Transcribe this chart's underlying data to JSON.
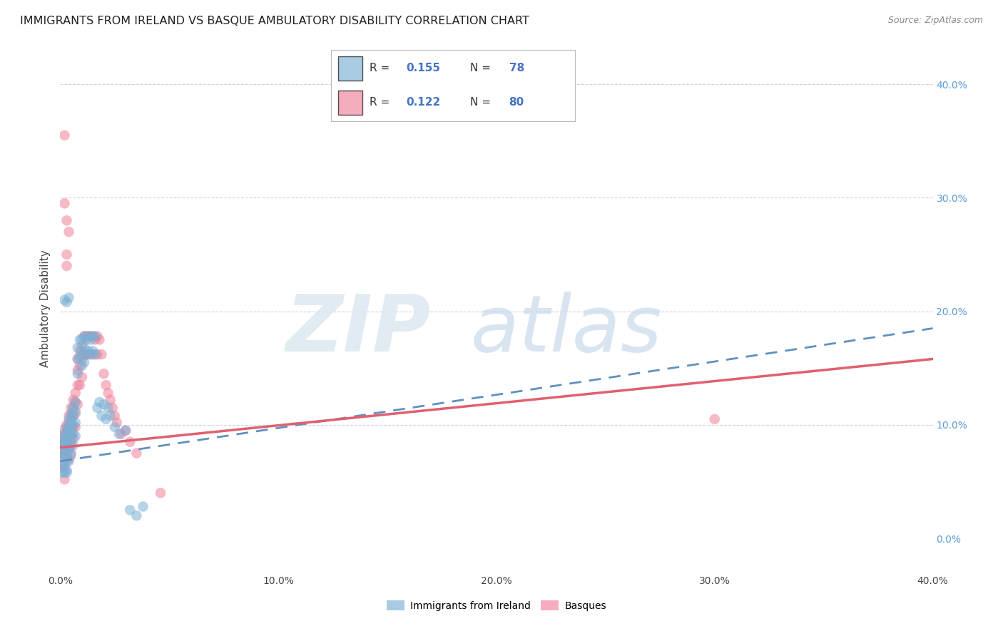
{
  "title": "IMMIGRANTS FROM IRELAND VS BASQUE AMBULATORY DISABILITY CORRELATION CHART",
  "source": "Source: ZipAtlas.com",
  "ylabel": "Ambulatory Disability",
  "x_min": 0.0,
  "x_max": 0.4,
  "y_min": -0.03,
  "y_max": 0.435,
  "ireland_color": "#7bafd4",
  "basque_color": "#f08098",
  "ireland_line_color": "#6090c0",
  "basque_line_color": "#e06070",
  "ireland_label": "Immigrants from Ireland",
  "basque_label": "Basques",
  "R_ireland": 0.155,
  "N_ireland": 78,
  "R_basque": 0.122,
  "N_basque": 80,
  "background_color": "#ffffff",
  "grid_color": "#c8d4e4",
  "ireland_line_start_y": 0.068,
  "ireland_line_end_y": 0.185,
  "basque_line_start_y": 0.08,
  "basque_line_end_y": 0.158,
  "ireland_scatter_x": [
    0.001,
    0.001,
    0.001,
    0.001,
    0.001,
    0.002,
    0.002,
    0.002,
    0.002,
    0.002,
    0.002,
    0.002,
    0.003,
    0.003,
    0.003,
    0.003,
    0.003,
    0.003,
    0.003,
    0.004,
    0.004,
    0.004,
    0.004,
    0.004,
    0.004,
    0.005,
    0.005,
    0.005,
    0.005,
    0.005,
    0.005,
    0.006,
    0.006,
    0.006,
    0.006,
    0.006,
    0.007,
    0.007,
    0.007,
    0.007,
    0.008,
    0.008,
    0.008,
    0.009,
    0.009,
    0.01,
    0.01,
    0.01,
    0.011,
    0.011,
    0.011,
    0.012,
    0.012,
    0.013,
    0.013,
    0.014,
    0.014,
    0.015,
    0.015,
    0.016,
    0.016,
    0.017,
    0.018,
    0.019,
    0.02,
    0.021,
    0.022,
    0.023,
    0.025,
    0.027,
    0.03,
    0.032,
    0.035,
    0.038,
    0.002,
    0.003,
    0.004,
    0.003
  ],
  "ireland_scatter_y": [
    0.085,
    0.078,
    0.072,
    0.065,
    0.058,
    0.092,
    0.088,
    0.083,
    0.078,
    0.073,
    0.065,
    0.058,
    0.098,
    0.093,
    0.088,
    0.083,
    0.075,
    0.068,
    0.06,
    0.105,
    0.098,
    0.092,
    0.085,
    0.078,
    0.068,
    0.11,
    0.104,
    0.098,
    0.09,
    0.082,
    0.073,
    0.115,
    0.108,
    0.1,
    0.092,
    0.082,
    0.12,
    0.112,
    0.102,
    0.09,
    0.168,
    0.158,
    0.145,
    0.175,
    0.16,
    0.175,
    0.165,
    0.152,
    0.178,
    0.168,
    0.155,
    0.175,
    0.162,
    0.178,
    0.165,
    0.175,
    0.162,
    0.178,
    0.165,
    0.178,
    0.162,
    0.115,
    0.12,
    0.108,
    0.118,
    0.105,
    0.115,
    0.108,
    0.098,
    0.092,
    0.095,
    0.025,
    0.02,
    0.028,
    0.21,
    0.208,
    0.212,
    0.058
  ],
  "basque_scatter_x": [
    0.001,
    0.001,
    0.001,
    0.001,
    0.002,
    0.002,
    0.002,
    0.002,
    0.002,
    0.002,
    0.003,
    0.003,
    0.003,
    0.003,
    0.003,
    0.003,
    0.003,
    0.004,
    0.004,
    0.004,
    0.004,
    0.004,
    0.004,
    0.005,
    0.005,
    0.005,
    0.005,
    0.005,
    0.005,
    0.006,
    0.006,
    0.006,
    0.006,
    0.006,
    0.007,
    0.007,
    0.007,
    0.007,
    0.008,
    0.008,
    0.008,
    0.008,
    0.009,
    0.009,
    0.009,
    0.01,
    0.01,
    0.01,
    0.011,
    0.011,
    0.012,
    0.012,
    0.013,
    0.013,
    0.014,
    0.015,
    0.015,
    0.016,
    0.017,
    0.017,
    0.018,
    0.019,
    0.02,
    0.021,
    0.022,
    0.023,
    0.024,
    0.025,
    0.026,
    0.028,
    0.03,
    0.032,
    0.035,
    0.002,
    0.003,
    0.004,
    0.002,
    0.3,
    0.002,
    0.046
  ],
  "basque_scatter_y": [
    0.09,
    0.082,
    0.075,
    0.065,
    0.096,
    0.09,
    0.084,
    0.078,
    0.072,
    0.062,
    0.25,
    0.24,
    0.1,
    0.095,
    0.088,
    0.082,
    0.072,
    0.108,
    0.102,
    0.095,
    0.088,
    0.08,
    0.07,
    0.115,
    0.108,
    0.1,
    0.092,
    0.085,
    0.075,
    0.122,
    0.115,
    0.108,
    0.098,
    0.088,
    0.128,
    0.12,
    0.11,
    0.098,
    0.158,
    0.148,
    0.135,
    0.118,
    0.165,
    0.152,
    0.135,
    0.17,
    0.158,
    0.142,
    0.178,
    0.162,
    0.178,
    0.162,
    0.178,
    0.162,
    0.178,
    0.178,
    0.162,
    0.175,
    0.178,
    0.162,
    0.175,
    0.162,
    0.145,
    0.135,
    0.128,
    0.122,
    0.115,
    0.108,
    0.102,
    0.092,
    0.095,
    0.085,
    0.075,
    0.295,
    0.28,
    0.27,
    0.355,
    0.105,
    0.052,
    0.04
  ]
}
